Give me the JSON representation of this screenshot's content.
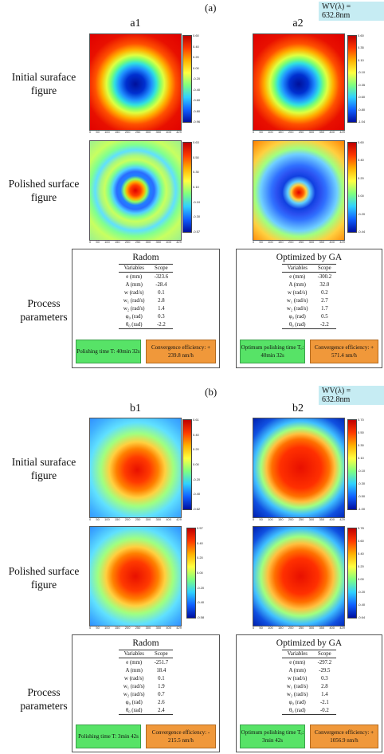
{
  "panel_a": {
    "label": "(a)",
    "wv": "WV(λ) = 632.8nm",
    "col1": "a1",
    "col2": "a2",
    "row_initial": [
      "Initial suraface",
      "figure"
    ],
    "row_polished": [
      "Polished surface",
      "figure"
    ],
    "row_process": [
      "Process",
      "parameters"
    ],
    "initial_scale_left": [
      "0.60",
      "0.40",
      "0.20",
      "0.00",
      "-0.20",
      "-0.40",
      "-0.60",
      "-0.80",
      "-0.96"
    ],
    "initial_scale_right": [
      "0.60",
      "0.35",
      "0.10",
      "-0.10",
      "-0.35",
      "-0.60",
      "-0.80",
      "-1.04"
    ],
    "polished_scale_left": [
      "0.63",
      "0.50",
      "0.30",
      "0.10",
      "-0.10",
      "-0.30",
      "-0.57"
    ],
    "polished_scale_right": [
      "0.60",
      "0.40",
      "0.20",
      "0.00",
      "-0.20",
      "-0.44"
    ],
    "left_box": {
      "title": "Radom",
      "head": [
        "Variables",
        "Scope"
      ],
      "rows": [
        [
          "e (mm)",
          "-323.6"
        ],
        [
          "A (mm)",
          "-28.4"
        ],
        [
          "w (rad/s)",
          "0.1"
        ],
        [
          "w₁ (rad/s)",
          "2.8"
        ],
        [
          "w₂ (rad/s)",
          "1.4"
        ],
        [
          "φ₀ (rad)",
          "0.3"
        ],
        [
          "θ₀ (rad)",
          "-2.2"
        ]
      ],
      "green": "Polishing time T: 40min 32s",
      "orange": "Convergence efficiency: + 239.8 nm/h"
    },
    "right_box": {
      "title": "Optimized by GA",
      "head": [
        "Variables",
        "Scope"
      ],
      "rows": [
        [
          "e (mm)",
          "-300.2"
        ],
        [
          "A (mm)",
          "32.0"
        ],
        [
          "w (rad/s)",
          "0.2"
        ],
        [
          "w₁ (rad/s)",
          "2.7"
        ],
        [
          "w₂ (rad/s)",
          "1.7"
        ],
        [
          "φ₀ (rad)",
          "0.5"
        ],
        [
          "θ₀ (rad)",
          "-2.2"
        ]
      ],
      "green": "Optimum polishing time Tₒ: 40min 32s",
      "orange": "Convergence efficiency: + 571.4 nm/h"
    }
  },
  "panel_b": {
    "label": "(b)",
    "wv": "WV(λ) = 632.8nm",
    "col1": "b1",
    "col2": "b2",
    "row_initial": [
      "Initial suraface",
      "figure"
    ],
    "row_polished": [
      "Polished surface",
      "figure"
    ],
    "row_process": [
      "Process",
      "parameters"
    ],
    "initial_scale_left": [
      "0.61",
      "0.40",
      "0.20",
      "0.00",
      "-0.20",
      "-0.40",
      "-0.62"
    ],
    "initial_scale_right": [
      "0.70",
      "0.50",
      "0.30",
      "0.10",
      "-0.10",
      "-0.30",
      "-0.50",
      "-1.00"
    ],
    "polished_scale_left": [
      "0.57",
      "0.40",
      "0.20",
      "0.00",
      "-0.20",
      "-0.40",
      "-0.58"
    ],
    "polished_scale_right": [
      "0.78",
      "0.60",
      "0.40",
      "0.20",
      "0.00",
      "-0.20",
      "-0.40",
      "-0.64"
    ],
    "left_box": {
      "title": "Radom",
      "head": [
        "Variables",
        "Scope"
      ],
      "rows": [
        [
          "e (mm)",
          "-251.7"
        ],
        [
          "A (mm)",
          "18.4"
        ],
        [
          "w (rad/s)",
          "0.1"
        ],
        [
          "w₁ (rad/s)",
          "1.9"
        ],
        [
          "w₂ (rad/s)",
          "0.7"
        ],
        [
          "φ₀ (rad)",
          "2.6"
        ],
        [
          "θ₀ (rad)",
          "2.4"
        ]
      ],
      "green": "Polishing time T: 3min 42s",
      "orange": "Convergence efficiency: - 215.5 nm/h"
    },
    "right_box": {
      "title": "Optimized by GA",
      "head": [
        "Variables",
        "Scope"
      ],
      "rows": [
        [
          "e (mm)",
          "-297.2"
        ],
        [
          "A (mm)",
          "-29.5"
        ],
        [
          "w (rad/s)",
          "0.3"
        ],
        [
          "w₁ (rad/s)",
          "2.8"
        ],
        [
          "w₂ (rad/s)",
          "1.4"
        ],
        [
          "φ₀ (rad)",
          "-2.1"
        ],
        [
          "θ₀ (rad)",
          "-0.2"
        ]
      ],
      "green": "Optimum polishing time Tₒ: 3min 42s",
      "orange": "Convergence efficiency: + 1056.9 nm/h"
    }
  },
  "axis_ticks": [
    "0",
    "50",
    "100",
    "150",
    "200",
    "250",
    "300",
    "350",
    "400",
    "429"
  ]
}
